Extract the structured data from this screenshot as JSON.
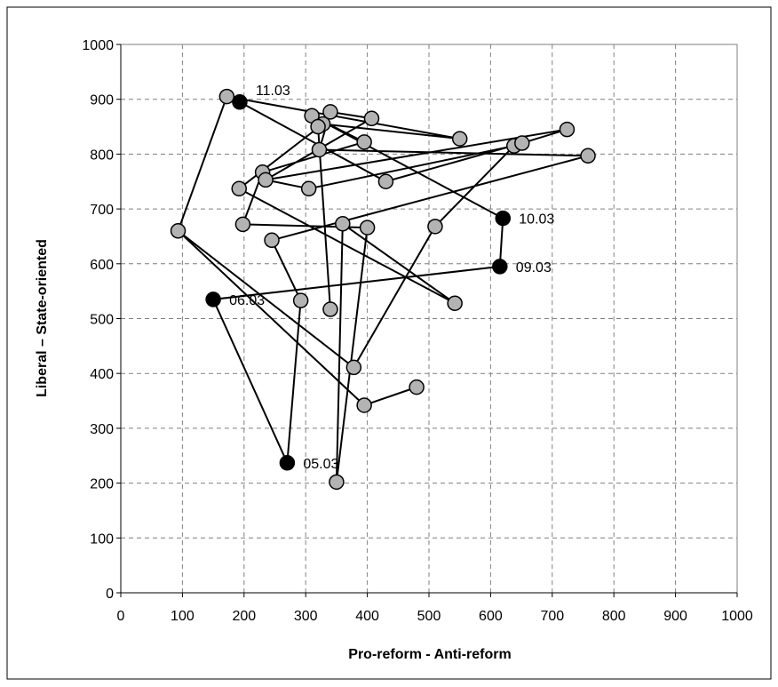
{
  "chart_data": {
    "type": "scatter",
    "title": "",
    "xlabel": "Pro-reform  -  Anti-reform",
    "ylabel": "Liberal   –  State-oriented",
    "xlim": [
      0,
      1000
    ],
    "ylim": [
      0,
      1000
    ],
    "xticks": [
      0,
      100,
      200,
      300,
      400,
      500,
      600,
      700,
      800,
      900,
      1000
    ],
    "yticks": [
      0,
      100,
      200,
      300,
      400,
      500,
      600,
      700,
      800,
      900,
      1000
    ],
    "grid": true,
    "legend": "none",
    "connected": true,
    "colors": {
      "marker": "#b3b3b3",
      "highlight": "#000000",
      "line": "#000000",
      "grid": "#7f7f7f"
    },
    "points": [
      {
        "x": 270,
        "y": 237,
        "highlight": true
      },
      {
        "x": 150,
        "y": 535,
        "highlight": true
      },
      {
        "x": 615,
        "y": 595,
        "highlight": true
      },
      {
        "x": 620,
        "y": 683,
        "highlight": true
      },
      {
        "x": 310,
        "y": 870,
        "highlight": false
      },
      {
        "x": 395,
        "y": 822,
        "highlight": false
      },
      {
        "x": 230,
        "y": 767,
        "highlight": false
      },
      {
        "x": 198,
        "y": 672,
        "highlight": false
      },
      {
        "x": 400,
        "y": 666,
        "highlight": false
      },
      {
        "x": 350,
        "y": 202,
        "highlight": false
      },
      {
        "x": 360,
        "y": 673,
        "highlight": false
      },
      {
        "x": 542,
        "y": 528,
        "highlight": false
      },
      {
        "x": 192,
        "y": 737,
        "highlight": false
      },
      {
        "x": 328,
        "y": 855,
        "highlight": false
      },
      {
        "x": 550,
        "y": 828,
        "highlight": false
      },
      {
        "x": 172,
        "y": 905,
        "highlight": false
      },
      {
        "x": 93,
        "y": 660,
        "highlight": false
      },
      {
        "x": 378,
        "y": 411,
        "highlight": false
      },
      {
        "x": 510,
        "y": 668,
        "highlight": false
      },
      {
        "x": 638,
        "y": 815,
        "highlight": false
      },
      {
        "x": 305,
        "y": 737,
        "highlight": false
      },
      {
        "x": 235,
        "y": 753,
        "highlight": false
      },
      {
        "x": 407,
        "y": 865,
        "highlight": false
      },
      {
        "x": 340,
        "y": 877,
        "highlight": false
      },
      {
        "x": 322,
        "y": 808,
        "highlight": false
      },
      {
        "x": 758,
        "y": 797,
        "highlight": false
      },
      {
        "x": 245,
        "y": 643,
        "highlight": false
      },
      {
        "x": 292,
        "y": 533,
        "highlight": false
      },
      {
        "x": 430,
        "y": 750,
        "highlight": false
      },
      {
        "x": 651,
        "y": 820,
        "highlight": false
      },
      {
        "x": 724,
        "y": 845,
        "highlight": false
      },
      {
        "x": 320,
        "y": 850,
        "highlight": false
      },
      {
        "x": 340,
        "y": 517,
        "highlight": false
      },
      {
        "x": 395,
        "y": 342,
        "highlight": false
      },
      {
        "x": 480,
        "y": 375,
        "highlight": false
      },
      {
        "x": 193,
        "y": 895,
        "highlight": true
      }
    ],
    "path": [
      [
        270,
        237
      ],
      [
        150,
        535
      ],
      [
        615,
        595
      ],
      [
        620,
        683
      ],
      [
        310,
        870
      ],
      [
        395,
        822
      ],
      [
        230,
        767
      ],
      [
        198,
        672
      ],
      [
        400,
        666
      ],
      [
        350,
        202
      ],
      [
        360,
        673
      ],
      [
        542,
        528
      ],
      [
        192,
        737
      ],
      [
        328,
        855
      ],
      [
        550,
        828
      ],
      [
        172,
        905
      ],
      [
        93,
        660
      ],
      [
        378,
        411
      ],
      [
        510,
        668
      ],
      [
        638,
        815
      ],
      [
        305,
        737
      ],
      [
        235,
        753
      ],
      [
        407,
        865
      ],
      [
        340,
        877
      ],
      [
        322,
        808
      ],
      [
        758,
        797
      ],
      [
        245,
        643
      ],
      [
        292,
        533
      ],
      [
        270,
        237
      ]
    ],
    "extra_segments": [
      [
        [
          93,
          660
        ],
        [
          395,
          342
        ]
      ],
      [
        [
          395,
          342
        ],
        [
          480,
          375
        ]
      ],
      [
        [
          172,
          905
        ],
        [
          193,
          895
        ]
      ],
      [
        [
          193,
          895
        ],
        [
          430,
          750
        ]
      ],
      [
        [
          430,
          750
        ],
        [
          651,
          820
        ]
      ],
      [
        [
          651,
          820
        ],
        [
          724,
          845
        ]
      ],
      [
        [
          724,
          845
        ],
        [
          235,
          753
        ]
      ],
      [
        [
          320,
          850
        ],
        [
          340,
          517
        ]
      ]
    ],
    "annotations": [
      {
        "text": "11.03",
        "x": 193,
        "y": 895,
        "side": "right"
      },
      {
        "text": "10.03",
        "x": 620,
        "y": 683,
        "side": "right"
      },
      {
        "text": "09.03",
        "x": 615,
        "y": 595,
        "side": "right"
      },
      {
        "text": "06.03",
        "x": 150,
        "y": 535,
        "side": "right"
      },
      {
        "text": "05.03",
        "x": 270,
        "y": 237,
        "side": "right"
      }
    ]
  }
}
